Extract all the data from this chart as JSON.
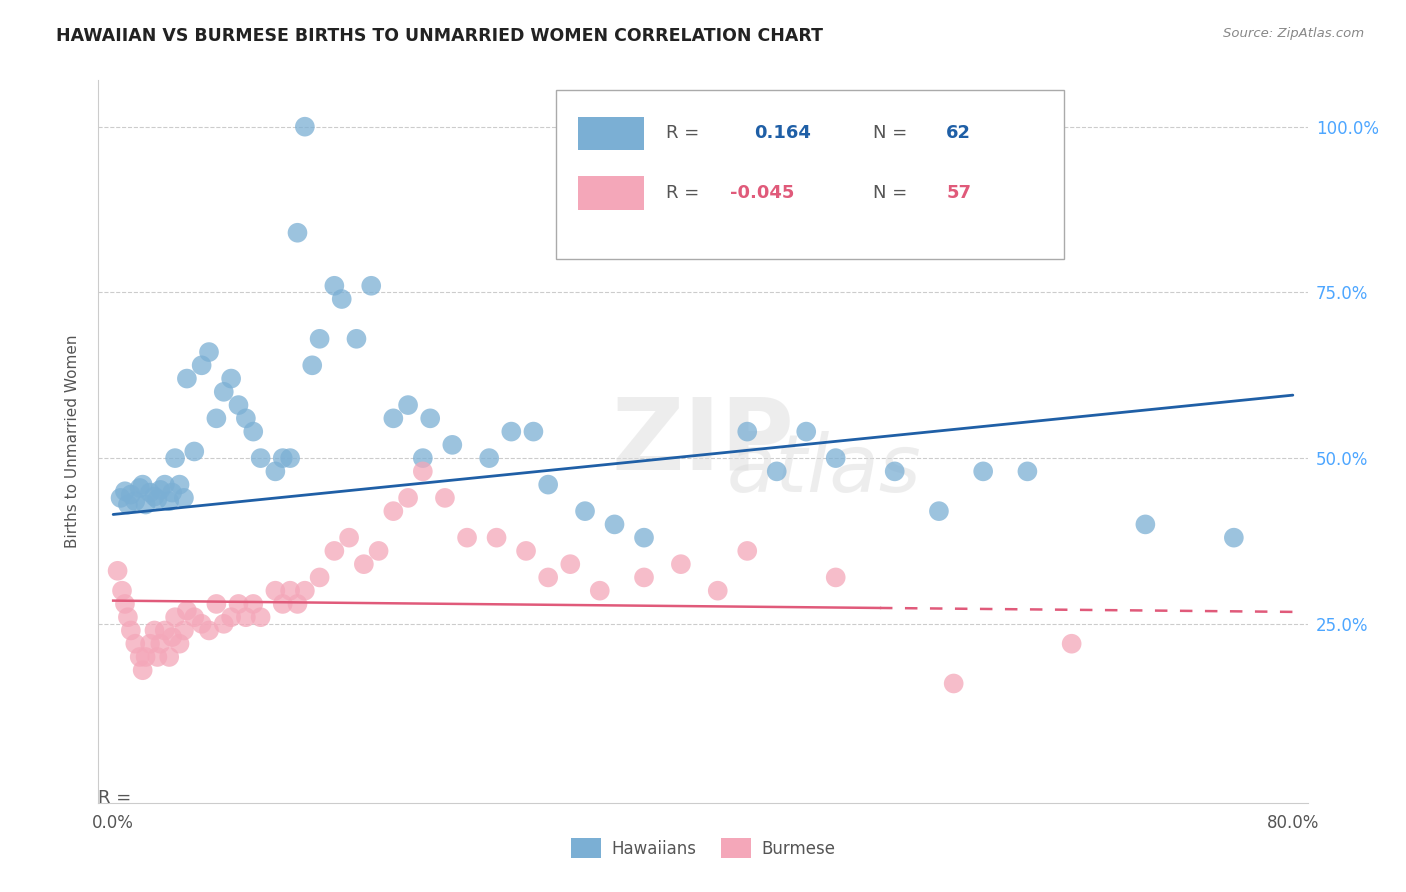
{
  "title": "HAWAIIAN VS BURMESE BIRTHS TO UNMARRIED WOMEN CORRELATION CHART",
  "source": "Source: ZipAtlas.com",
  "ylabel": "Births to Unmarried Women",
  "ytick_labels": [
    "25.0%",
    "50.0%",
    "75.0%",
    "100.0%"
  ],
  "ytick_values": [
    0.25,
    0.5,
    0.75,
    1.0
  ],
  "xlim": [
    0.0,
    0.8
  ],
  "ylim": [
    0.0,
    1.05
  ],
  "hawaiians_R": 0.164,
  "hawaiians_N": 62,
  "burmese_R": -0.045,
  "burmese_N": 57,
  "hawaiians_color": "#7BAFD4",
  "burmese_color": "#F4A7B9",
  "hawaiians_line_color": "#1F5FA6",
  "burmese_line_color": "#E05A7A",
  "legend_R_color": "#1F5FA6",
  "legend_N_color": "#1F5FA6",
  "right_tick_color": "#4DA6FF",
  "haw_line_y0": 0.415,
  "haw_line_y1": 0.595,
  "bur_line_y0": 0.285,
  "bur_line_y1": 0.268,
  "hawaiians_x": [
    0.005,
    0.008,
    0.01,
    0.012,
    0.015,
    0.018,
    0.02,
    0.022,
    0.025,
    0.028,
    0.03,
    0.032,
    0.035,
    0.038,
    0.04,
    0.042,
    0.045,
    0.048,
    0.05,
    0.055,
    0.06,
    0.065,
    0.07,
    0.075,
    0.08,
    0.085,
    0.09,
    0.095,
    0.1,
    0.11,
    0.115,
    0.12,
    0.125,
    0.13,
    0.135,
    0.14,
    0.15,
    0.155,
    0.165,
    0.175,
    0.19,
    0.2,
    0.21,
    0.215,
    0.23,
    0.255,
    0.27,
    0.285,
    0.295,
    0.32,
    0.34,
    0.36,
    0.43,
    0.45,
    0.47,
    0.49,
    0.53,
    0.56,
    0.59,
    0.62,
    0.7,
    0.76
  ],
  "hawaiians_y": [
    0.44,
    0.45,
    0.43,
    0.445,
    0.435,
    0.455,
    0.46,
    0.43,
    0.448,
    0.442,
    0.438,
    0.452,
    0.46,
    0.435,
    0.448,
    0.5,
    0.46,
    0.44,
    0.62,
    0.51,
    0.64,
    0.66,
    0.56,
    0.6,
    0.62,
    0.58,
    0.56,
    0.54,
    0.5,
    0.48,
    0.5,
    0.5,
    0.84,
    1.0,
    0.64,
    0.68,
    0.76,
    0.74,
    0.68,
    0.76,
    0.56,
    0.58,
    0.5,
    0.56,
    0.52,
    0.5,
    0.54,
    0.54,
    0.46,
    0.42,
    0.4,
    0.38,
    0.54,
    0.48,
    0.54,
    0.5,
    0.48,
    0.42,
    0.48,
    0.48,
    0.4,
    0.38
  ],
  "burmese_x": [
    0.003,
    0.006,
    0.008,
    0.01,
    0.012,
    0.015,
    0.018,
    0.02,
    0.022,
    0.025,
    0.028,
    0.03,
    0.032,
    0.035,
    0.038,
    0.04,
    0.042,
    0.045,
    0.048,
    0.05,
    0.055,
    0.06,
    0.065,
    0.07,
    0.075,
    0.08,
    0.085,
    0.09,
    0.095,
    0.1,
    0.11,
    0.115,
    0.12,
    0.125,
    0.13,
    0.14,
    0.15,
    0.16,
    0.17,
    0.18,
    0.19,
    0.2,
    0.21,
    0.225,
    0.24,
    0.26,
    0.28,
    0.295,
    0.31,
    0.33,
    0.36,
    0.385,
    0.41,
    0.43,
    0.49,
    0.57,
    0.65
  ],
  "burmese_y": [
    0.33,
    0.3,
    0.28,
    0.26,
    0.24,
    0.22,
    0.2,
    0.18,
    0.2,
    0.22,
    0.24,
    0.2,
    0.22,
    0.24,
    0.2,
    0.23,
    0.26,
    0.22,
    0.24,
    0.27,
    0.26,
    0.25,
    0.24,
    0.28,
    0.25,
    0.26,
    0.28,
    0.26,
    0.28,
    0.26,
    0.3,
    0.28,
    0.3,
    0.28,
    0.3,
    0.32,
    0.36,
    0.38,
    0.34,
    0.36,
    0.42,
    0.44,
    0.48,
    0.44,
    0.38,
    0.38,
    0.36,
    0.32,
    0.34,
    0.3,
    0.32,
    0.34,
    0.3,
    0.36,
    0.32,
    0.16,
    0.22
  ]
}
